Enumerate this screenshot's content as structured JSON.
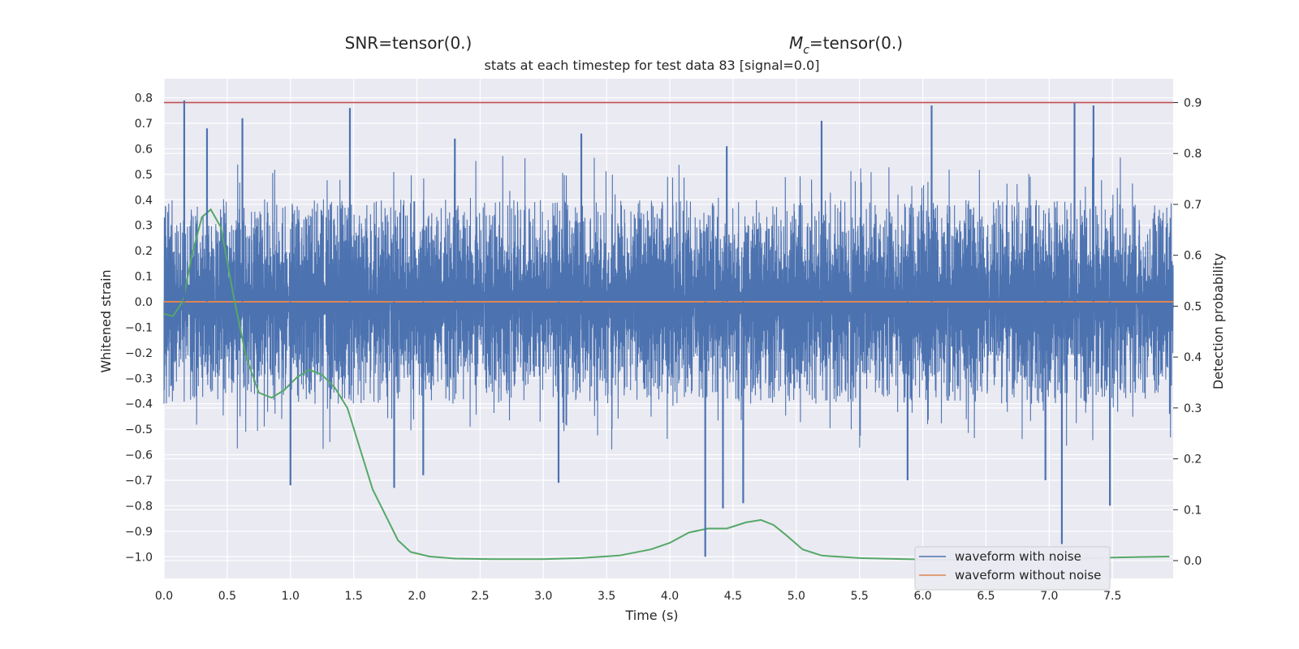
{
  "chart_data": {
    "type": "line",
    "headings": {
      "snr": "SNR=tensor(0.)",
      "mc_symbol": "M",
      "mc_sub": "c",
      "mc_value": "=tensor(0.)"
    },
    "title": "stats at each timestep for test data 83 [signal=0.0]",
    "xlabel": "Time (s)",
    "ylabel_left": "Whitened strain",
    "ylabel_right": "Detection probability",
    "xlim": [
      0.0,
      7.98
    ],
    "ylim_left": [
      -1.085,
      0.875
    ],
    "ylim_right": [
      -0.035,
      0.947
    ],
    "xticks": [
      "0.0",
      "0.5",
      "1.0",
      "1.5",
      "2.0",
      "2.5",
      "3.0",
      "3.5",
      "4.0",
      "4.5",
      "5.0",
      "5.5",
      "6.0",
      "6.5",
      "7.0",
      "7.5"
    ],
    "yticks_left": [
      "0.8",
      "0.7",
      "0.6",
      "0.5",
      "0.4",
      "0.3",
      "0.2",
      "0.1",
      "0.0",
      "−0.1",
      "−0.2",
      "−0.3",
      "−0.4",
      "−0.5",
      "−0.6",
      "−0.7",
      "−0.8",
      "−0.9",
      "−1.0"
    ],
    "yticks_right": [
      "0.9",
      "0.8",
      "0.7",
      "0.6",
      "0.5",
      "0.4",
      "0.3",
      "0.2",
      "0.1",
      "0.0"
    ],
    "grid": true,
    "legend_position": "lower-right",
    "colors": {
      "background": "#eaeaf2",
      "grid": "#ffffff",
      "noisy": "#4c72b0",
      "clean": "#dd8452",
      "probability": "#55a868",
      "threshold": "#c44e52"
    },
    "series": [
      {
        "name": "waveform with noise",
        "axis": "left",
        "style": "dense-noise",
        "typical_range": [
          -0.4,
          0.4
        ],
        "peaks": [
          {
            "x": 0.16,
            "y": 0.79
          },
          {
            "x": 0.34,
            "y": 0.68
          },
          {
            "x": 0.62,
            "y": 0.72
          },
          {
            "x": 1.47,
            "y": 0.76
          },
          {
            "x": 2.3,
            "y": 0.64
          },
          {
            "x": 3.3,
            "y": 0.66
          },
          {
            "x": 4.45,
            "y": 0.61
          },
          {
            "x": 5.2,
            "y": 0.71
          },
          {
            "x": 6.07,
            "y": 0.77
          },
          {
            "x": 7.2,
            "y": 0.78
          },
          {
            "x": 7.35,
            "y": 0.77
          },
          {
            "x": 1.0,
            "y": -0.72
          },
          {
            "x": 1.82,
            "y": -0.73
          },
          {
            "x": 2.05,
            "y": -0.68
          },
          {
            "x": 3.12,
            "y": -0.71
          },
          {
            "x": 4.28,
            "y": -1.0
          },
          {
            "x": 4.42,
            "y": -0.81
          },
          {
            "x": 4.58,
            "y": -0.79
          },
          {
            "x": 5.88,
            "y": -0.7
          },
          {
            "x": 6.97,
            "y": -0.7
          },
          {
            "x": 7.1,
            "y": -0.95
          },
          {
            "x": 7.48,
            "y": -0.8
          }
        ]
      },
      {
        "name": "waveform without noise",
        "axis": "left",
        "x": [
          0.0,
          7.98
        ],
        "y": [
          0.0,
          0.0
        ]
      },
      {
        "axis": "right",
        "x": [
          0.0,
          0.07,
          0.15,
          0.22,
          0.3,
          0.37,
          0.45,
          0.55,
          0.65,
          0.75,
          0.85,
          0.95,
          1.05,
          1.15,
          1.25,
          1.35,
          1.45,
          1.55,
          1.65,
          1.75,
          1.85,
          1.95,
          2.1,
          2.3,
          2.6,
          3.0,
          3.3,
          3.6,
          3.85,
          4.0,
          4.15,
          4.3,
          4.45,
          4.6,
          4.72,
          4.82,
          4.92,
          5.05,
          5.2,
          5.5,
          6.0,
          6.5,
          7.0,
          7.5,
          7.95
        ],
        "y": [
          0.485,
          0.48,
          0.51,
          0.6,
          0.675,
          0.69,
          0.655,
          0.52,
          0.4,
          0.33,
          0.32,
          0.335,
          0.36,
          0.375,
          0.365,
          0.34,
          0.3,
          0.22,
          0.14,
          0.09,
          0.04,
          0.017,
          0.008,
          0.004,
          0.003,
          0.003,
          0.005,
          0.01,
          0.022,
          0.035,
          0.055,
          0.063,
          0.063,
          0.075,
          0.08,
          0.07,
          0.05,
          0.022,
          0.01,
          0.005,
          0.002,
          0.001,
          0.002,
          0.006,
          0.008
        ]
      },
      {
        "axis": "right",
        "style": "threshold",
        "y": 0.9
      }
    ]
  }
}
